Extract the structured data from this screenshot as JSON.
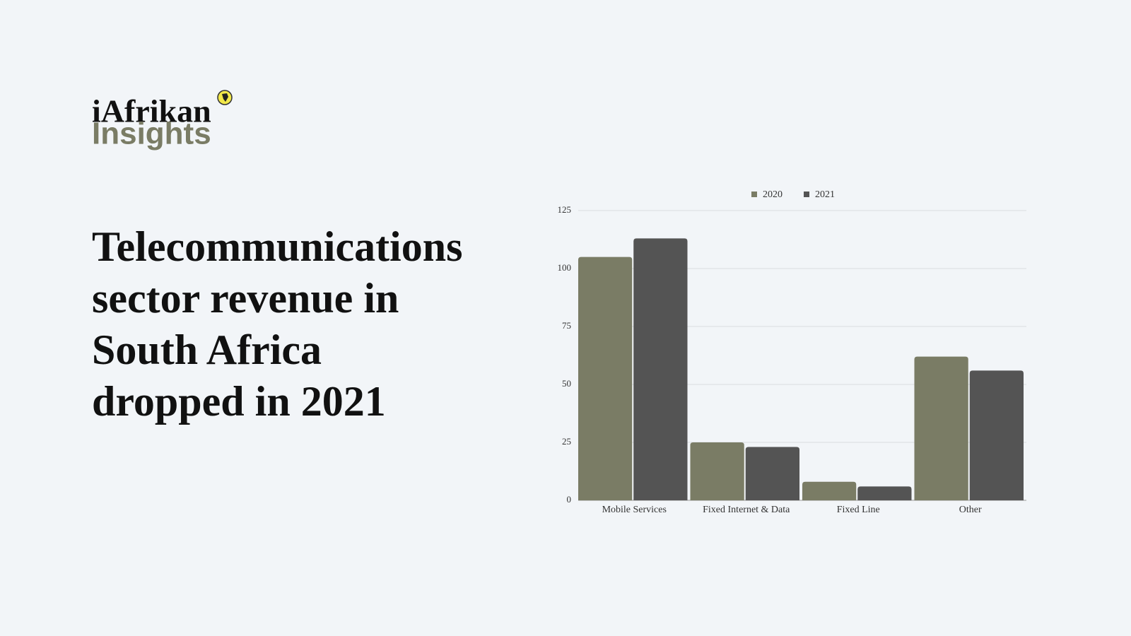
{
  "logo": {
    "line1": "iAfrikan",
    "line2": "Insights"
  },
  "heading": {
    "lines": [
      "Telecommunications",
      "sector revenue in",
      "South Africa",
      "dropped in 2021"
    ]
  },
  "chart_data": {
    "type": "bar",
    "categories": [
      "Mobile Services",
      "Fixed Internet & Data",
      "Fixed Line",
      "Other"
    ],
    "series": [
      {
        "name": "2020",
        "color": "#7a7c65",
        "values": [
          105,
          25,
          8,
          62
        ]
      },
      {
        "name": "2021",
        "color": "#545454",
        "values": [
          113,
          23,
          6,
          56
        ]
      }
    ],
    "ylim": [
      0,
      125
    ],
    "yticks": [
      0,
      25,
      50,
      75,
      100,
      125
    ],
    "grid": true,
    "legend": "top"
  }
}
